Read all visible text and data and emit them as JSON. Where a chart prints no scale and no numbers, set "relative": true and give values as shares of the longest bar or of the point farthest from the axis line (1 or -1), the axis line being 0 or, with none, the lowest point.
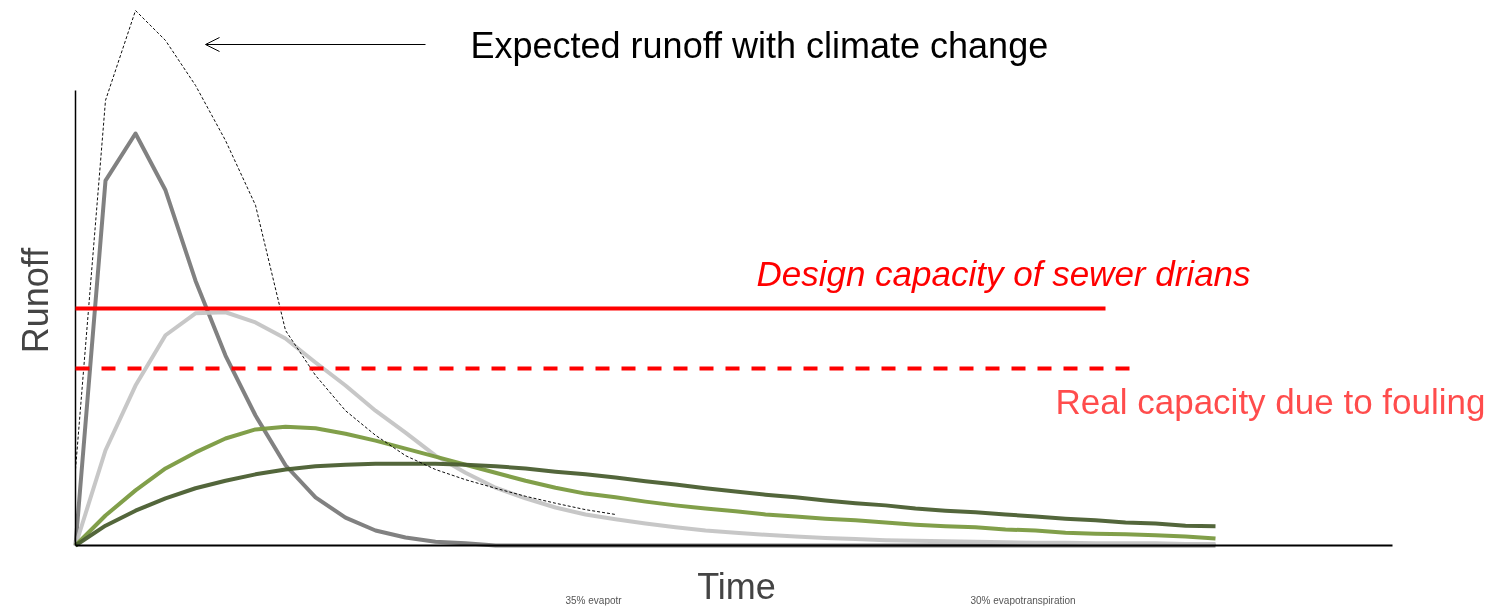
{
  "chart_data": {
    "type": "line",
    "relative": true,
    "xlabel": "Time",
    "ylabel": "Runoff",
    "categories": [
      null,
      null,
      null,
      null,
      null,
      null,
      null,
      null,
      null,
      null,
      null,
      null,
      null,
      null,
      null,
      null,
      null,
      null,
      null,
      null,
      null,
      null,
      null,
      null,
      null,
      null,
      null,
      null,
      null,
      null,
      null,
      null,
      null,
      null,
      null,
      null,
      null,
      null,
      null
    ],
    "series": [
      {
        "color": "#7a7a7a",
        "values": [
          0,
          0.682,
          0.77,
          0.664,
          0.495,
          0.355,
          0.243,
          0.15,
          0.09,
          0.052,
          0.028,
          0.015,
          0.007,
          0.004,
          0,
          0,
          0,
          0,
          0,
          0,
          0,
          0,
          0,
          0,
          0,
          0,
          0,
          0,
          0,
          0,
          0,
          0,
          0,
          0,
          0,
          0,
          0,
          0,
          0
        ]
      },
      {
        "color": "#c4c4c4",
        "values": [
          0,
          0.178,
          0.299,
          0.393,
          0.434,
          0.436,
          0.417,
          0.387,
          0.342,
          0.299,
          0.252,
          0.211,
          0.168,
          0.136,
          0.108,
          0.088,
          0.071,
          0.058,
          0.049,
          0.041,
          0.034,
          0.028,
          0.024,
          0.02,
          0.017,
          0.014,
          0.012,
          0.01,
          0.009,
          0.008,
          0.007,
          0.006,
          0.005,
          0.005,
          0.004,
          0.004,
          0.004,
          0.003,
          0.003
        ]
      },
      {
        "color": "#7a9a40",
        "values": [
          0,
          0.056,
          0.103,
          0.144,
          0.174,
          0.2,
          0.217,
          0.222,
          0.219,
          0.209,
          0.196,
          0.181,
          0.166,
          0.151,
          0.136,
          0.121,
          0.108,
          0.097,
          0.09,
          0.082,
          0.075,
          0.069,
          0.064,
          0.058,
          0.054,
          0.05,
          0.047,
          0.043,
          0.039,
          0.036,
          0.034,
          0.03,
          0.028,
          0.024,
          0.022,
          0.021,
          0.019,
          0.017,
          0.013
        ]
      },
      {
        "color": "#4a5e30",
        "values": [
          0,
          0.037,
          0.065,
          0.088,
          0.107,
          0.121,
          0.133,
          0.142,
          0.148,
          0.151,
          0.153,
          0.153,
          0.153,
          0.151,
          0.148,
          0.144,
          0.138,
          0.133,
          0.127,
          0.12,
          0.114,
          0.107,
          0.101,
          0.095,
          0.09,
          0.084,
          0.079,
          0.075,
          0.069,
          0.065,
          0.062,
          0.058,
          0.054,
          0.05,
          0.047,
          0.043,
          0.041,
          0.037,
          0.036
        ]
      },
      {
        "color": "#000000",
        "line_style": "dashed",
        "values": [
          0.142,
          0.832,
          1.0,
          0.944,
          0.86,
          0.757,
          0.636,
          0.402,
          0.318,
          0.252,
          0.206,
          0.168,
          0.142,
          0.123,
          0.107,
          0.092,
          0.079,
          0.067,
          0.058,
          null,
          null,
          null,
          null,
          null,
          null,
          null,
          null,
          null,
          null,
          null,
          null,
          null,
          null,
          null,
          null,
          null,
          null,
          null,
          null
        ]
      }
    ],
    "ref_lines": [
      {
        "axis": "y",
        "value": 0.443,
        "label": "Design capacity of sewer drians",
        "color": "#ff0000"
      },
      {
        "axis": "y",
        "value": 0.331,
        "label": "Real capacity due to fouling",
        "color": "#ff0000",
        "line_style": "dashed"
      }
    ],
    "annotations": [
      "Expected runoff with climate change",
      "35% evapotr",
      "30% evapotranspiration"
    ],
    "grid": false
  }
}
